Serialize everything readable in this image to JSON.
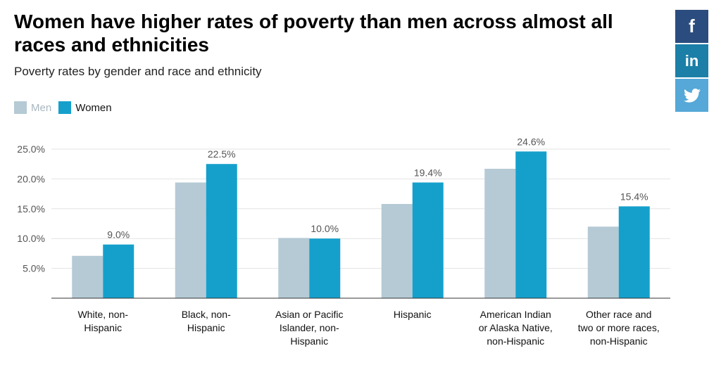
{
  "colors": {
    "men": "#b5cad5",
    "women": "#15a0cc",
    "facebook": "#2b4c7e",
    "linkedin": "#1b7fa8",
    "twitter": "#55a8d8",
    "grid": "#e3e3e3",
    "axis": "#333333"
  },
  "social": [
    {
      "name": "facebook-button",
      "icon": "f"
    },
    {
      "name": "linkedin-button",
      "icon": "in"
    },
    {
      "name": "twitter-button",
      "icon": "twitter-bird-icon"
    }
  ],
  "chart_data": {
    "type": "bar",
    "title": "Women have higher rates of poverty than men across almost all races and ethnicities",
    "subtitle": "Poverty rates by gender and race and ethnicity",
    "categories": [
      [
        "White, non-",
        "Hispanic"
      ],
      [
        "Black, non-",
        "Hispanic"
      ],
      [
        "Asian or Pacific",
        "Islander, non-",
        "Hispanic"
      ],
      [
        "Hispanic"
      ],
      [
        "American Indian",
        "or Alaska Native,",
        "non-Hispanic"
      ],
      [
        "Other race and",
        "two or more races,",
        "non-Hispanic"
      ]
    ],
    "series": [
      {
        "name": "Men",
        "values": [
          7.1,
          19.4,
          10.1,
          15.8,
          21.7,
          12.0
        ]
      },
      {
        "name": "Women",
        "values": [
          9.0,
          22.5,
          10.0,
          19.4,
          24.6,
          15.4
        ]
      }
    ],
    "data_labels": [
      "9.0%",
      "22.5%",
      "10.0%",
      "19.4%",
      "24.6%",
      "15.4%"
    ],
    "ylim": [
      0,
      25
    ],
    "yticks": [
      "5.0%",
      "10.0%",
      "15.0%",
      "20.0%",
      "25.0%"
    ],
    "ytick_values": [
      5,
      10,
      15,
      20,
      25
    ],
    "grid": true,
    "legend": "top-left"
  }
}
